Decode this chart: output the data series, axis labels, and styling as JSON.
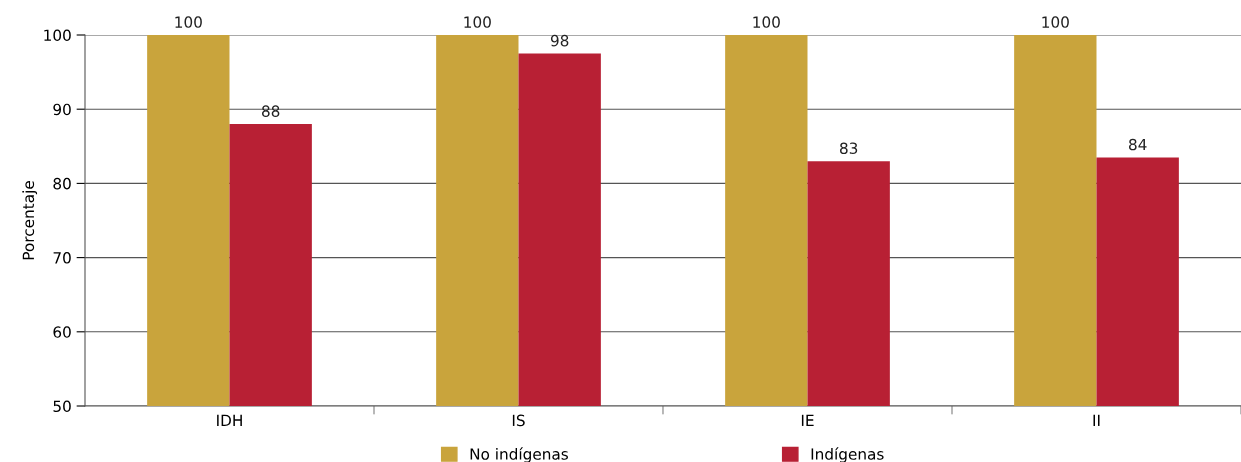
{
  "chart_data": {
    "type": "bar",
    "ylabel": "Porcentaje",
    "categories": [
      "IDH",
      "IS",
      "IE",
      "II"
    ],
    "series": [
      {
        "name": "No indígenas",
        "color": "#c9a43c",
        "values": [
          100,
          100,
          100,
          100
        ],
        "value_labels": [
          "100",
          "100",
          "100",
          "100"
        ]
      },
      {
        "name": "Indígenas",
        "color": "#b82034",
        "values": [
          88,
          97.5,
          83,
          83.5
        ],
        "value_labels": [
          "88",
          "98",
          "83",
          "84"
        ]
      }
    ],
    "ylim": [
      50,
      100
    ],
    "yticks": [
      50,
      60,
      70,
      80,
      90,
      100
    ],
    "grid": "y",
    "legend": "bottom"
  }
}
